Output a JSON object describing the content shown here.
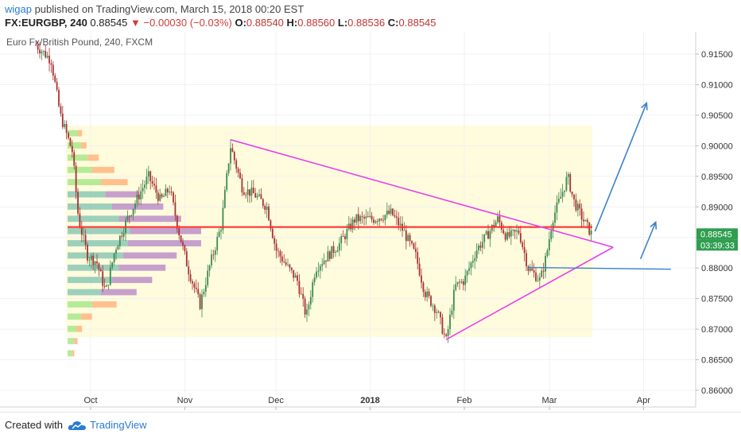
{
  "header": {
    "username": "wigap",
    "published_text": " published on TradingView.com, March 15, 2018 00:20 EST",
    "symbol": "FX:EURGBP, 240",
    "last": "0.88545",
    "change": "▼ −0.00030 (−0.03%)",
    "o_label": "O:",
    "o_value": "0.88540",
    "h_label": "H:",
    "h_value": "0.88560",
    "l_label": "L:",
    "l_value": "0.88536",
    "c_label": "C:",
    "c_value": "0.88545"
  },
  "chart_title": "Euro Fx/British Pound, 240, FXCM",
  "footer": {
    "created_with": "Created with",
    "brand": "TradingView"
  },
  "colors": {
    "up_candle": "#3c8a4f",
    "down_candle": "#a83232",
    "pink_line": "#e83fe8",
    "red_line": "#ff2a2a",
    "blue_arrow": "#3b82c8",
    "price_tag": "#2e9e4f"
  },
  "chart_data": {
    "type": "candlestick",
    "title": "Euro Fx/British Pound, 240, FXCM",
    "ylim": [
      0.8575,
      0.9185
    ],
    "y_ticks": [
      "0.91500",
      "0.91000",
      "0.90500",
      "0.90000",
      "0.89500",
      "0.89000",
      "0.88500",
      "0.88000",
      "0.87500",
      "0.87000",
      "0.86500",
      "0.86000"
    ],
    "x_ticks": [
      "Oct",
      "Nov",
      "Dec",
      "2018",
      "Feb",
      "Mar",
      "Apr"
    ],
    "last_price_label": "0.88545",
    "countdown_label": "03:39:33",
    "price_path_approx": [
      [
        "2017-09-13",
        0.9165
      ],
      [
        "2017-09-18",
        0.914
      ],
      [
        "2017-09-21",
        0.905
      ],
      [
        "2017-09-25",
        0.899
      ],
      [
        "2017-09-27",
        0.888
      ],
      [
        "2017-09-30",
        0.882
      ],
      [
        "2017-10-03",
        0.881
      ],
      [
        "2017-10-06",
        0.876
      ],
      [
        "2017-10-09",
        0.883
      ],
      [
        "2017-10-13",
        0.888
      ],
      [
        "2017-10-17",
        0.892
      ],
      [
        "2017-10-20",
        0.895
      ],
      [
        "2017-10-24",
        0.891
      ],
      [
        "2017-10-27",
        0.893
      ],
      [
        "2017-10-30",
        0.886
      ],
      [
        "2017-11-02",
        0.88
      ],
      [
        "2017-11-06",
        0.874
      ],
      [
        "2017-11-09",
        0.88
      ],
      [
        "2017-11-13",
        0.887
      ],
      [
        "2017-11-16",
        0.9
      ],
      [
        "2017-11-20",
        0.893
      ],
      [
        "2017-11-24",
        0.892
      ],
      [
        "2017-11-28",
        0.89
      ],
      [
        "2017-12-01",
        0.883
      ],
      [
        "2017-12-05",
        0.88
      ],
      [
        "2017-12-08",
        0.878
      ],
      [
        "2017-12-11",
        0.872
      ],
      [
        "2017-12-14",
        0.88
      ],
      [
        "2017-12-18",
        0.882
      ],
      [
        "2017-12-22",
        0.884
      ],
      [
        "2017-12-27",
        0.888
      ],
      [
        "2018-01-02",
        0.888
      ],
      [
        "2018-01-08",
        0.889
      ],
      [
        "2018-01-12",
        0.886
      ],
      [
        "2018-01-16",
        0.882
      ],
      [
        "2018-01-19",
        0.876
      ],
      [
        "2018-01-23",
        0.873
      ],
      [
        "2018-01-26",
        0.868
      ],
      [
        "2018-01-29",
        0.877
      ],
      [
        "2018-02-01",
        0.878
      ],
      [
        "2018-02-05",
        0.883
      ],
      [
        "2018-02-08",
        0.885
      ],
      [
        "2018-02-12",
        0.888
      ],
      [
        "2018-02-15",
        0.885
      ],
      [
        "2018-02-19",
        0.886
      ],
      [
        "2018-02-22",
        0.88
      ],
      [
        "2018-02-26",
        0.878
      ],
      [
        "2018-02-28",
        0.882
      ],
      [
        "2018-03-02",
        0.888
      ],
      [
        "2018-03-05",
        0.892
      ],
      [
        "2018-03-07",
        0.895
      ],
      [
        "2018-03-09",
        0.891
      ],
      [
        "2018-03-12",
        0.888
      ],
      [
        "2018-03-15",
        0.88545
      ]
    ],
    "volume_profile_rows": [
      {
        "price": 0.902,
        "up": 0.9,
        "down": 0.4
      },
      {
        "price": 0.9,
        "up": 1.2,
        "down": 0.5
      },
      {
        "price": 0.898,
        "up": 1.8,
        "down": 1.0
      },
      {
        "price": 0.896,
        "up": 2.2,
        "down": 2.0
      },
      {
        "price": 0.894,
        "up": 3.0,
        "down": 2.4
      },
      {
        "price": 0.892,
        "up": 3.4,
        "down": 3.0
      },
      {
        "price": 0.89,
        "up": 4.0,
        "down": 4.6
      },
      {
        "price": 0.888,
        "up": 4.6,
        "down": 5.6
      },
      {
        "price": 0.886,
        "up": 5.6,
        "down": 6.4
      },
      {
        "price": 0.884,
        "up": 5.4,
        "down": 6.6
      },
      {
        "price": 0.882,
        "up": 5.0,
        "down": 4.8
      },
      {
        "price": 0.88,
        "up": 4.6,
        "down": 4.2
      },
      {
        "price": 0.878,
        "up": 4.0,
        "down": 3.6
      },
      {
        "price": 0.876,
        "up": 3.0,
        "down": 3.2
      },
      {
        "price": 0.874,
        "up": 2.2,
        "down": 2.2
      },
      {
        "price": 0.872,
        "up": 1.2,
        "down": 1.0
      },
      {
        "price": 0.87,
        "up": 0.8,
        "down": 0.5
      },
      {
        "price": 0.868,
        "up": 0.6,
        "down": 0.3
      },
      {
        "price": 0.866,
        "up": 0.4,
        "down": 0.2
      }
    ],
    "point_of_control": 0.8867,
    "triangle_upper": [
      [
        "2017-11-16",
        0.901
      ],
      [
        "2018-03-22",
        0.8834
      ]
    ],
    "triangle_lower": [
      [
        "2018-01-26",
        0.8683
      ],
      [
        "2018-03-22",
        0.8834
      ]
    ],
    "support_line": [
      [
        "2018-02-22",
        0.8801
      ],
      [
        "2018-04-10",
        0.8798
      ]
    ],
    "forecast_arrows": [
      [
        [
          "2018-03-16",
          0.886
        ],
        [
          "2018-04-02",
          0.907
        ]
      ],
      [
        [
          "2018-03-31",
          0.8815
        ],
        [
          "2018-04-05",
          0.8875
        ]
      ]
    ]
  }
}
